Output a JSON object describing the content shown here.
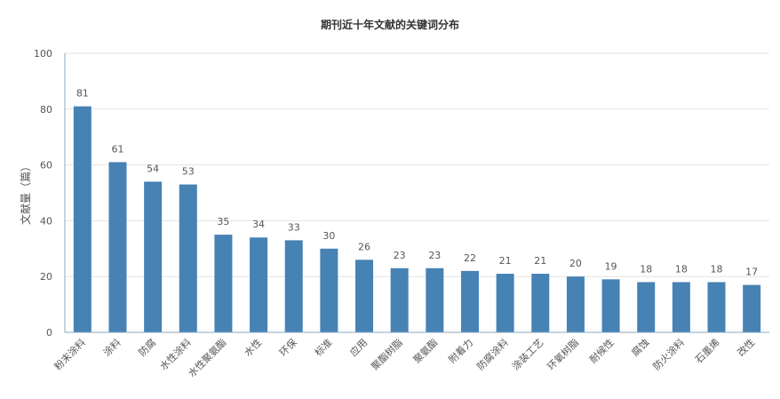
{
  "chart_data": {
    "type": "bar",
    "title": "期刊近十年文献的关键词分布",
    "xlabel": "",
    "ylabel": "文献量（篇）",
    "ylim": [
      0,
      100
    ],
    "yticks": [
      0,
      20,
      40,
      60,
      80,
      100
    ],
    "grid": true,
    "bar_color": "#4682b4",
    "categories": [
      "粉末涂料",
      "涂料",
      "防腐",
      "水性涂料",
      "水性聚氨酯",
      "水性",
      "环保",
      "标准",
      "应用",
      "聚酯树脂",
      "聚氨酯",
      "附着力",
      "防腐涂料",
      "涂装工艺",
      "环氧树脂",
      "耐候性",
      "腐蚀",
      "防火涂料",
      "石墨烯",
      "改性"
    ],
    "values": [
      81,
      61,
      54,
      53,
      35,
      34,
      33,
      30,
      26,
      23,
      23,
      22,
      21,
      21,
      20,
      19,
      18,
      18,
      18,
      17
    ]
  }
}
